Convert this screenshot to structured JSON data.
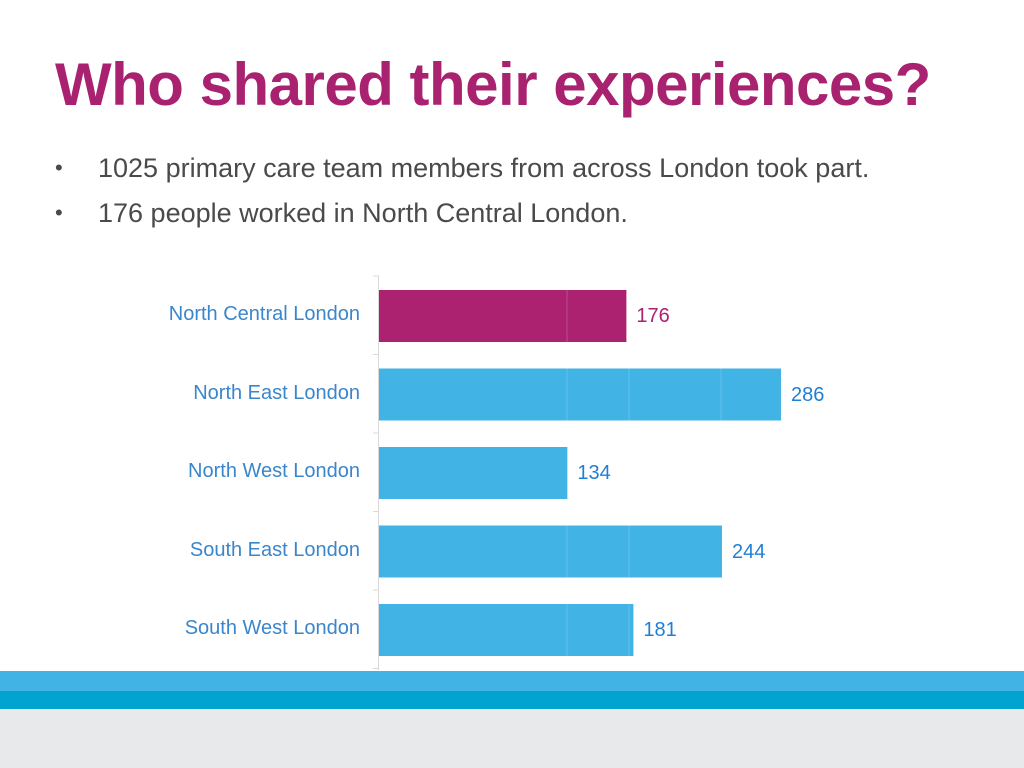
{
  "title": "Who shared their experiences?",
  "bullets": [
    "1025 primary care team members from across London took part.",
    "176 people worked in North Central London."
  ],
  "chart_data": {
    "type": "bar",
    "orientation": "horizontal",
    "categories": [
      "North Central London",
      "North East London",
      "North West London",
      "South East London",
      "South West London"
    ],
    "values": [
      176,
      286,
      134,
      244,
      181
    ],
    "highlight": "North Central London",
    "colors": {
      "highlight": "#ad2270",
      "default": "#41b4e5",
      "highlight_label": "#ad2270",
      "default_label": "#1f7fd6"
    },
    "data_labels": true,
    "grid": false,
    "xlim": [
      0,
      286
    ]
  },
  "colors": {
    "title": "#a92270",
    "band_top": "#41b4e5",
    "band_mid": "#01a3cf",
    "band_bottom": "#e8e9ea"
  }
}
